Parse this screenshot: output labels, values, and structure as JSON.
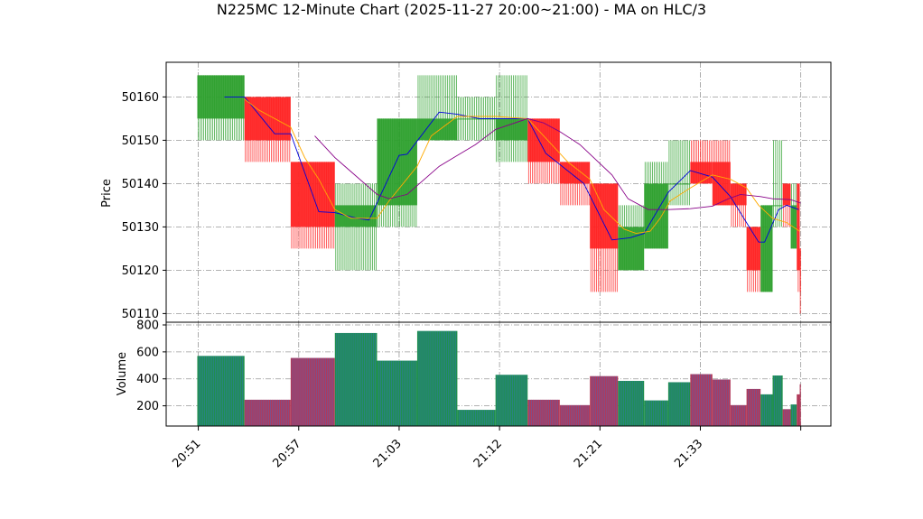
{
  "chart_data": {
    "title": "N225MC 12-Minute Chart (2025-11-27 20:00~21:00) - MA on HLC/3",
    "type": "candlestick",
    "colors": {
      "up": "#2ca02c",
      "down": "#ff2222",
      "vol_up": "#1f8f4f",
      "vol_down": "#b03a5a",
      "ma1": "#0000dd",
      "ma2": "#ffaa00",
      "ma3": "#880088"
    },
    "price_panel": {
      "ylabel": "Price",
      "ylim": [
        50108,
        50168
      ],
      "yticks": [
        50110,
        50120,
        50130,
        50140,
        50150,
        50160
      ],
      "grid": true
    },
    "volume_panel": {
      "ylabel": "Volume",
      "ylim": [
        50,
        820
      ],
      "yticks": [
        200,
        400,
        600,
        800
      ],
      "grid": true
    },
    "x_ticks": [
      {
        "i": 0.0,
        "label": "20:51"
      },
      {
        "i": 5.0,
        "label": "20:57"
      },
      {
        "i": 10.0,
        "label": "21:03"
      },
      {
        "i": 15.0,
        "label": "21:12"
      },
      {
        "i": 20.0,
        "label": "21:21"
      },
      {
        "i": 25.0,
        "label": "21:33"
      },
      {
        "i": 30.0,
        "label": ""
      }
    ],
    "xlim": [
      -1.6,
      31.5
    ],
    "candles": [
      {
        "s": -0.05,
        "e": 2.3,
        "o": 50155,
        "c": 50165,
        "h": 50165,
        "l": 50150,
        "v": 570
      },
      {
        "s": 2.3,
        "e": 4.6,
        "o": 50160,
        "c": 50150,
        "h": 50160,
        "l": 50145,
        "v": 245
      },
      {
        "s": 4.6,
        "e": 6.8,
        "o": 50145,
        "c": 50130,
        "h": 50145,
        "l": 50125,
        "v": 555
      },
      {
        "s": 6.8,
        "e": 8.9,
        "o": 50130,
        "c": 50135,
        "h": 50140,
        "l": 50120,
        "v": 740
      },
      {
        "s": 8.9,
        "e": 10.9,
        "o": 50135,
        "c": 50155,
        "h": 50155,
        "l": 50130,
        "v": 535
      },
      {
        "s": 10.9,
        "e": 12.9,
        "o": 50150,
        "c": 50155,
        "h": 50165,
        "l": 50150,
        "v": 755
      },
      {
        "s": 12.9,
        "e": 14.8,
        "o": 50155,
        "c": 50155,
        "h": 50160,
        "l": 50150,
        "v": 170
      },
      {
        "s": 14.8,
        "e": 16.4,
        "o": 50150,
        "c": 50155,
        "h": 50165,
        "l": 50145,
        "v": 430
      },
      {
        "s": 16.4,
        "e": 18.0,
        "o": 50155,
        "c": 50145,
        "h": 50155,
        "l": 50140,
        "v": 245
      },
      {
        "s": 18.0,
        "e": 19.5,
        "o": 50145,
        "c": 50140,
        "h": 50145,
        "l": 50135,
        "v": 205
      },
      {
        "s": 19.5,
        "e": 20.9,
        "o": 50140,
        "c": 50125,
        "h": 50140,
        "l": 50115,
        "v": 420
      },
      {
        "s": 20.9,
        "e": 22.2,
        "o": 50120,
        "c": 50130,
        "h": 50135,
        "l": 50120,
        "v": 385
      },
      {
        "s": 22.2,
        "e": 23.4,
        "o": 50125,
        "c": 50140,
        "h": 50145,
        "l": 50125,
        "v": 240
      },
      {
        "s": 23.4,
        "e": 24.5,
        "o": 50140,
        "c": 50140,
        "h": 50150,
        "l": 50135,
        "v": 375
      },
      {
        "s": 24.5,
        "e": 25.6,
        "o": 50145,
        "c": 50140,
        "h": 50150,
        "l": 50140,
        "v": 435
      },
      {
        "s": 25.6,
        "e": 26.5,
        "o": 50145,
        "c": 50135,
        "h": 50150,
        "l": 50135,
        "v": 395
      },
      {
        "s": 26.5,
        "e": 27.3,
        "o": 50140,
        "c": 50135,
        "h": 50140,
        "l": 50130,
        "v": 205
      },
      {
        "s": 27.3,
        "e": 28.0,
        "o": 50130,
        "c": 50120,
        "h": 50130,
        "l": 50115,
        "v": 325
      },
      {
        "s": 28.0,
        "e": 28.6,
        "o": 50115,
        "c": 50135,
        "h": 50135,
        "l": 50115,
        "v": 285
      },
      {
        "s": 28.6,
        "e": 29.1,
        "o": 50135,
        "c": 50135,
        "h": 50150,
        "l": 50130,
        "v": 425
      },
      {
        "s": 29.1,
        "e": 29.5,
        "o": 50140,
        "c": 50135,
        "h": 50140,
        "l": 50130,
        "v": 175
      },
      {
        "s": 29.5,
        "e": 29.8,
        "o": 50125,
        "c": 50135,
        "h": 50140,
        "l": 50125,
        "v": 210
      },
      {
        "s": 29.8,
        "e": 29.95,
        "o": 50140,
        "c": 50120,
        "h": 50140,
        "l": 50115,
        "v": 285
      },
      {
        "s": 29.95,
        "e": 30.0,
        "o": 50125,
        "c": 50115,
        "h": 50125,
        "l": 50110,
        "v": 360
      }
    ],
    "ma_lines": [
      {
        "color": "#0000dd",
        "points": [
          [
            1.3,
            50160
          ],
          [
            2.3,
            50160
          ],
          [
            3.8,
            50151.5
          ],
          [
            4.6,
            50151.5
          ],
          [
            6.0,
            50133.5
          ],
          [
            6.8,
            50133.3
          ],
          [
            7.9,
            50132
          ],
          [
            8.5,
            50131.6
          ],
          [
            10.0,
            50146.5
          ],
          [
            10.4,
            50146.8
          ],
          [
            12.0,
            50156.5
          ],
          [
            12.9,
            50156
          ],
          [
            14.0,
            50155
          ],
          [
            15.0,
            50155
          ],
          [
            16.4,
            50155
          ],
          [
            17.3,
            50147
          ],
          [
            19.2,
            50140
          ],
          [
            20.6,
            50127
          ],
          [
            21.5,
            50127.5
          ],
          [
            22.2,
            50128.5
          ],
          [
            23.4,
            50138
          ],
          [
            24.5,
            50143
          ],
          [
            25.6,
            50141.5
          ],
          [
            26.5,
            50137
          ],
          [
            27.3,
            50131
          ],
          [
            27.9,
            50126.5
          ],
          [
            28.2,
            50126.5
          ],
          [
            28.9,
            50134
          ],
          [
            29.3,
            50135
          ],
          [
            29.9,
            50134
          ]
        ]
      },
      {
        "color": "#ffaa00",
        "points": [
          [
            2.3,
            50159.5
          ],
          [
            3.0,
            50157
          ],
          [
            4.6,
            50153
          ],
          [
            5.3,
            50146
          ],
          [
            6.0,
            50141
          ],
          [
            6.8,
            50134
          ],
          [
            7.6,
            50132
          ],
          [
            8.9,
            50132
          ],
          [
            9.5,
            50136
          ],
          [
            10.9,
            50144
          ],
          [
            11.6,
            50151
          ],
          [
            12.9,
            50155.5
          ],
          [
            14.8,
            50155.5
          ],
          [
            16.4,
            50155
          ],
          [
            17.4,
            50150
          ],
          [
            18.4,
            50145
          ],
          [
            19.5,
            50141
          ],
          [
            20.2,
            50134
          ],
          [
            21.2,
            50129.5
          ],
          [
            21.8,
            50128.5
          ],
          [
            22.5,
            50129
          ],
          [
            23.0,
            50132
          ],
          [
            23.5,
            50136
          ],
          [
            24.5,
            50139
          ],
          [
            25.6,
            50142
          ],
          [
            26.5,
            50141
          ],
          [
            27.3,
            50139
          ],
          [
            27.9,
            50135
          ],
          [
            28.6,
            50132
          ],
          [
            29.3,
            50131
          ],
          [
            29.95,
            50129
          ]
        ]
      },
      {
        "color": "#880088",
        "points": [
          [
            5.8,
            50151
          ],
          [
            6.8,
            50146
          ],
          [
            8.9,
            50137.5
          ],
          [
            9.5,
            50136.5
          ],
          [
            10.4,
            50137.5
          ],
          [
            12.0,
            50144
          ],
          [
            13.8,
            50149
          ],
          [
            14.8,
            50152.5
          ],
          [
            16.4,
            50155
          ],
          [
            17.2,
            50154
          ],
          [
            18.0,
            50152
          ],
          [
            19.0,
            50149
          ],
          [
            20.6,
            50142
          ],
          [
            21.4,
            50136.5
          ],
          [
            22.4,
            50134
          ],
          [
            23.4,
            50134
          ],
          [
            24.5,
            50134.2
          ],
          [
            25.6,
            50134.8
          ],
          [
            26.4,
            50136.5
          ],
          [
            27.0,
            50137.5
          ],
          [
            28.0,
            50137
          ],
          [
            28.6,
            50136.5
          ],
          [
            29.5,
            50136.3
          ],
          [
            30.0,
            50135.5
          ]
        ]
      }
    ]
  }
}
